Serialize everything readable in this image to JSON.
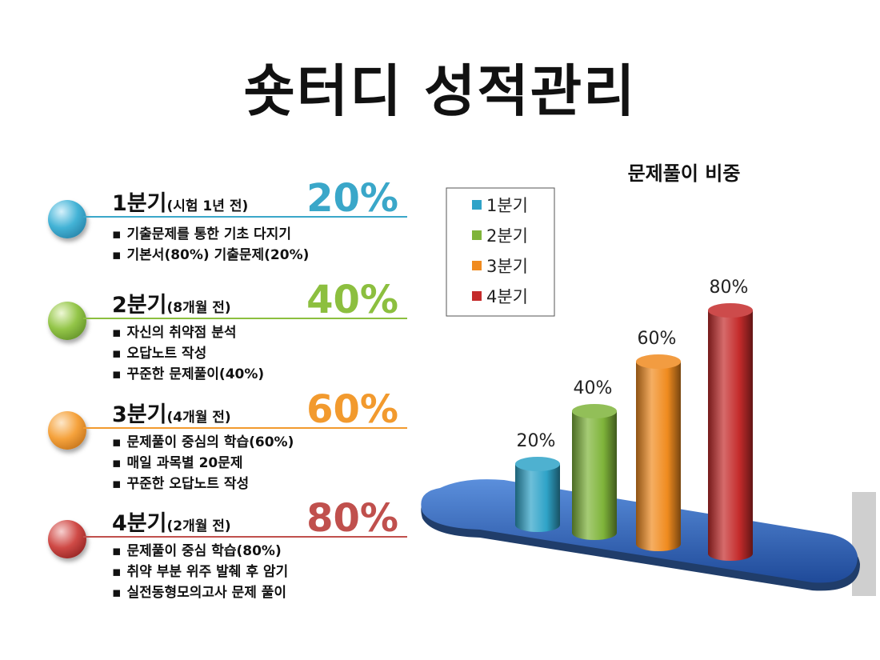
{
  "page": {
    "title": "숏터디 성적관리"
  },
  "quarters": [
    {
      "name": "1분기",
      "note": "(시험 1년 전)",
      "percent": "20%",
      "color": "#3aa7c9",
      "bullets": [
        "기출문제를 통한 기초 다지기",
        "기본서(80%) 기출문제(20%)"
      ]
    },
    {
      "name": "2분기",
      "note": "(8개월 전)",
      "percent": "40%",
      "color": "#8cbf3f",
      "bullets": [
        "자신의 취약점 분석",
        "오답노트 작성",
        "꾸준한 문제풀이(40%)"
      ]
    },
    {
      "name": "3분기",
      "note": "(4개월 전)",
      "percent": "60%",
      "color": "#f29a2e",
      "bullets": [
        "문제풀이 중심의 학습(60%)",
        "매일 과목별 20문제",
        "꾸준한 오답노트 작성"
      ]
    },
    {
      "name": "4분기",
      "note": "(2개월 전)",
      "percent": "80%",
      "color": "#c0504d",
      "bullets": [
        "문제풀이 중심 학습(80%)",
        "취약 부분 위주 발췌 후 암기",
        "실전동형모의고사 문제 풀이"
      ]
    }
  ],
  "chart_data": {
    "type": "bar",
    "title": "문제풀이 비중",
    "categories": [
      "1분기",
      "2분기",
      "3분기",
      "4분기"
    ],
    "values": [
      20,
      40,
      60,
      80
    ],
    "data_labels": [
      "20%",
      "40%",
      "60%",
      "80%"
    ],
    "colors": [
      "#2fa3c8",
      "#7fb43a",
      "#f08b1f",
      "#c42b2b"
    ],
    "base_color": "#3a6fc1",
    "ylim": [
      0,
      100
    ],
    "legend_position": "top-left",
    "grid": false
  }
}
